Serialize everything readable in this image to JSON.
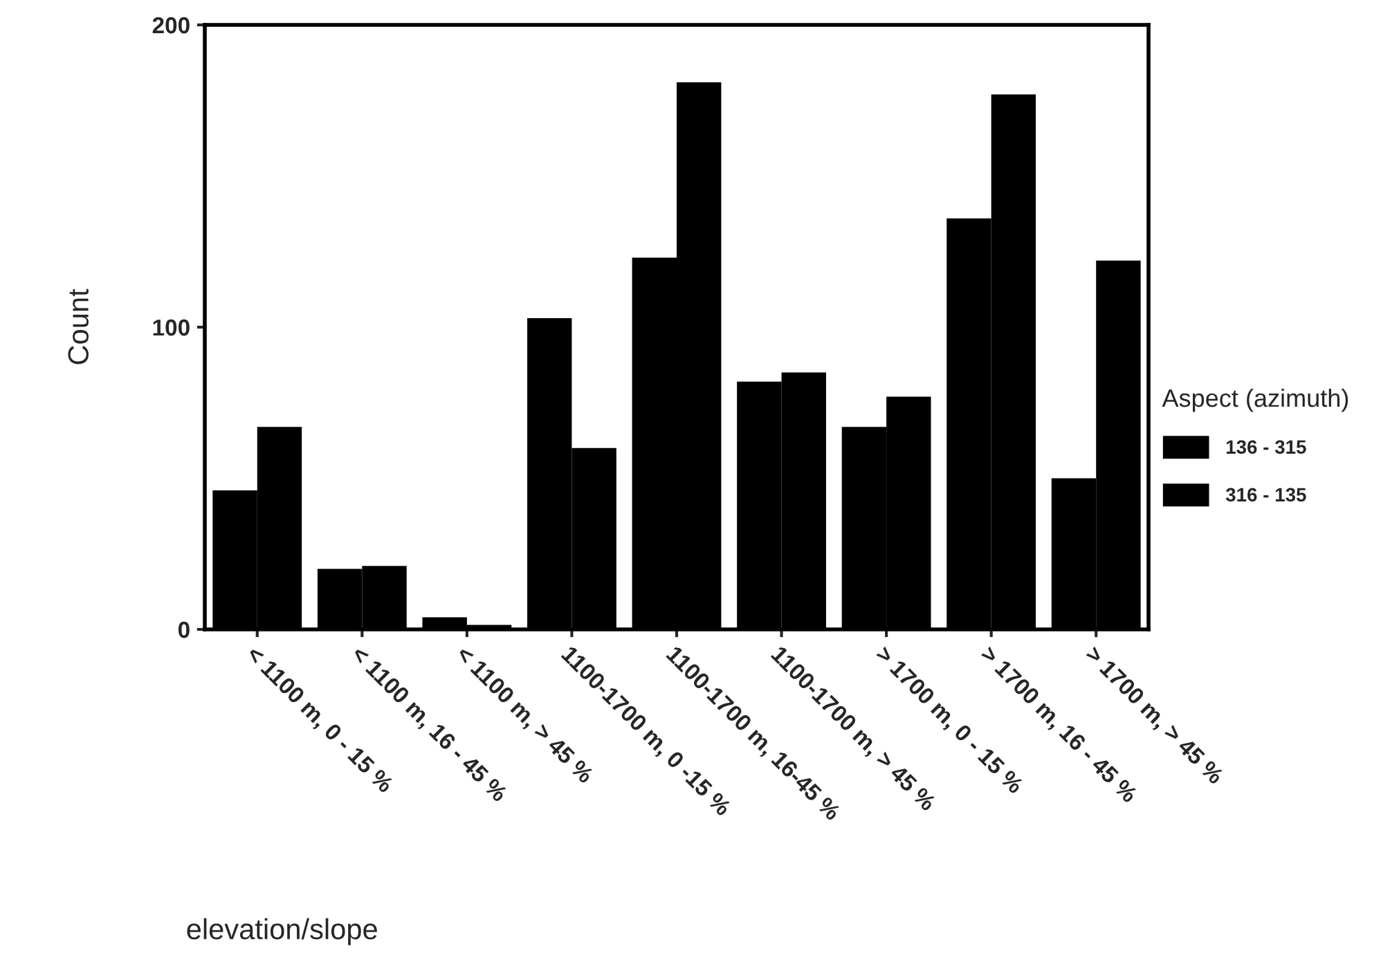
{
  "chart_data": {
    "type": "bar",
    "xlabel": "elevation/slope",
    "ylabel": "Count",
    "legend_title": "Aspect (azimuth)",
    "categories": [
      "< 1100 m, 0 - 15 %",
      "< 1100 m, 16 - 45 %",
      "< 1100 m, > 45 %",
      "1100-1700 m, 0 -15 %",
      "1100-1700 m, 16-45 %",
      "1100-1700 m, > 45 %",
      "> 1700 m, 0 - 15 %",
      "> 1700 m, 16 - 45 %",
      "> 1700 m, > 45 %"
    ],
    "series": [
      {
        "name": "136 - 315",
        "color": "#000000",
        "values": [
          46,
          20,
          4,
          103,
          123,
          82,
          67,
          136,
          50
        ]
      },
      {
        "name": "316 - 135",
        "color": "#000000",
        "values": [
          67,
          21,
          1.5,
          60,
          181,
          85,
          77,
          177,
          122
        ]
      }
    ],
    "ylim": [
      0,
      200
    ],
    "yticks": [
      0,
      100,
      200
    ],
    "grid": false,
    "legend": "right"
  }
}
